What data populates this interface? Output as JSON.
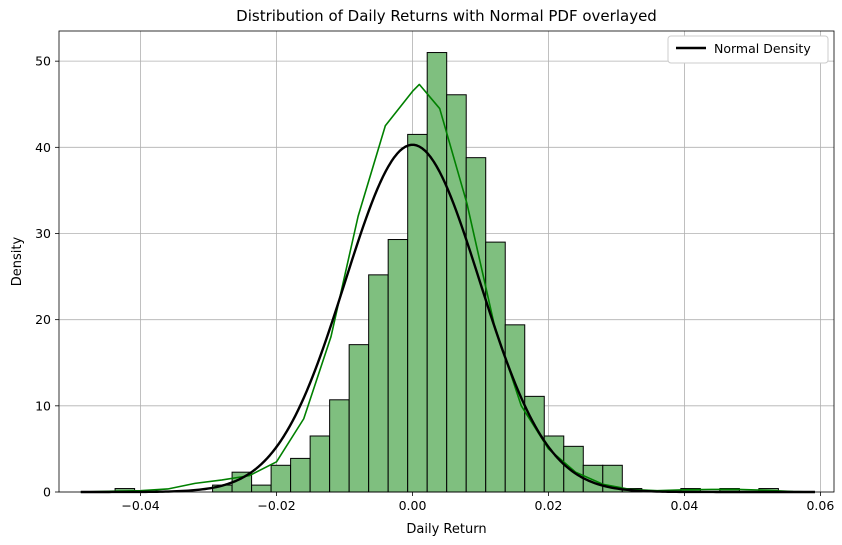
{
  "chart_data": {
    "type": "bar",
    "title": "Distribution of Daily Returns with Normal PDF overlayed",
    "xlabel": "Daily Return",
    "ylabel": "Density",
    "xlim": [
      -0.052,
      0.062
    ],
    "ylim": [
      0,
      53.5
    ],
    "grid": true,
    "legend_position": "top-right",
    "x_ticks": [
      -0.04,
      -0.02,
      0.0,
      0.02,
      0.04,
      0.06
    ],
    "x_tick_labels": [
      "−0.04",
      "−0.02",
      "0.00",
      "0.02",
      "0.04",
      "0.06"
    ],
    "y_ticks": [
      0,
      10,
      20,
      30,
      40,
      50
    ],
    "y_tick_labels": [
      "0",
      "10",
      "20",
      "30",
      "40",
      "50"
    ],
    "bin_width": 0.00287,
    "bin_starts": [
      -0.04375,
      -0.02941,
      -0.02654,
      -0.02367,
      -0.0208,
      -0.01793,
      -0.01506,
      -0.01219,
      -0.00932,
      -0.00645,
      -0.00358,
      -0.00071,
      0.00216,
      0.00503,
      0.0079,
      0.01077,
      0.01364,
      0.01651,
      0.01938,
      0.02225,
      0.02512,
      0.02799,
      0.03086,
      0.03947,
      0.04521,
      0.05095
    ],
    "bin_values": [
      0.4,
      0.8,
      2.3,
      0.8,
      3.1,
      3.9,
      6.5,
      10.7,
      17.1,
      25.2,
      29.3,
      41.5,
      51.0,
      46.1,
      38.8,
      29.0,
      19.4,
      11.1,
      6.5,
      5.3,
      3.1,
      3.1,
      0.4,
      0.4,
      0.4,
      0.4
    ],
    "series": [
      {
        "name": "Normal Density",
        "kind": "normal_pdf",
        "mean": 0.0,
        "std": 0.0099,
        "x_range": [
          -0.0488,
          0.0592
        ],
        "color": "#000000"
      },
      {
        "kind": "kde",
        "x": [
          -0.0488,
          -0.044,
          -0.04,
          -0.036,
          -0.032,
          -0.028,
          -0.024,
          -0.02,
          -0.016,
          -0.012,
          -0.008,
          -0.004,
          0.0,
          0.001,
          0.004,
          0.008,
          0.012,
          0.016,
          0.02,
          0.024,
          0.028,
          0.032,
          0.036,
          0.04,
          0.044,
          0.048,
          0.052,
          0.056,
          0.0592
        ],
        "y": [
          0.0,
          0.1,
          0.15,
          0.35,
          1.0,
          1.4,
          1.9,
          3.5,
          8.5,
          18.0,
          32.0,
          42.5,
          46.5,
          47.3,
          44.5,
          33.5,
          19.5,
          10.0,
          5.0,
          2.3,
          0.9,
          0.3,
          0.15,
          0.25,
          0.3,
          0.3,
          0.2,
          0.05,
          0.0
        ],
        "color": "#008000"
      }
    ],
    "bar_fill": "#7fbf7f",
    "bar_edge": "#000000"
  }
}
